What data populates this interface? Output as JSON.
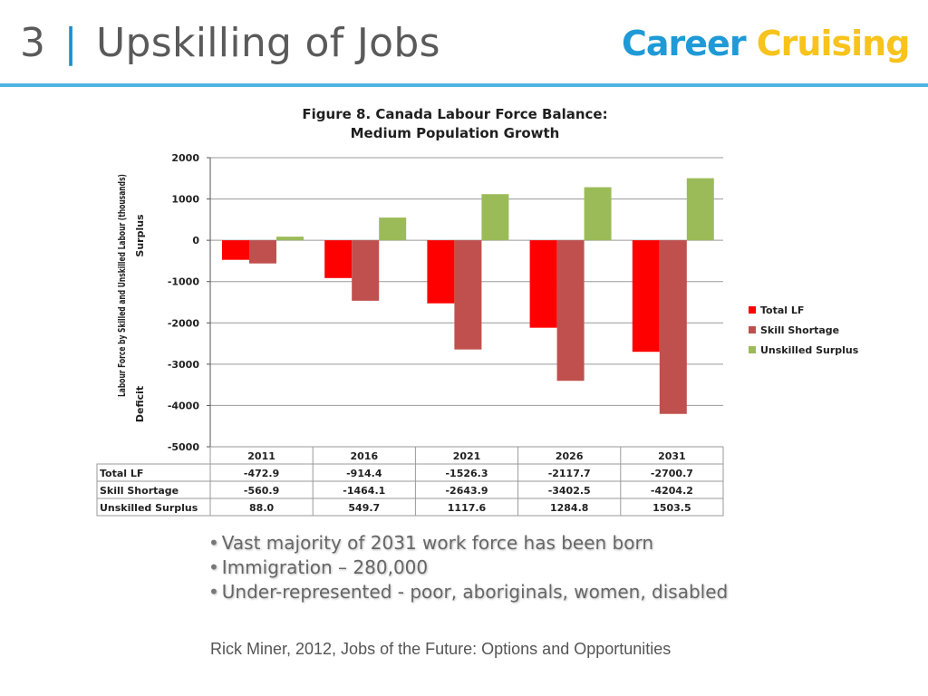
{
  "slide": {
    "number": "3",
    "separator": "|",
    "title": "Upskilling of Jobs",
    "logo": {
      "word1": "Career",
      "word2": "Cruising"
    },
    "bullets": [
      "Vast majority of 2031 work force has been born",
      "Immigration – 280,000",
      "Under-represented - poor, aboriginals, women, disabled"
    ],
    "citation": "Rick Miner, 2012, Jobs of the Future: Options and Opportunities"
  },
  "chart_data": {
    "type": "bar",
    "title": [
      "Figure 8. Canada  Labour Force Balance:",
      "Medium Population Growth"
    ],
    "ylabel": [
      "Labour Force by Skilled and Unskilled Labour (thousands)",
      "Surplus",
      "Deficit"
    ],
    "ylim": [
      -5000,
      2000
    ],
    "yticks": [
      2000,
      1000,
      0,
      -1000,
      -2000,
      -3000,
      -4000,
      -5000
    ],
    "grid": true,
    "legend": "right",
    "categories": [
      "2011",
      "2016",
      "2021",
      "2026",
      "2031"
    ],
    "series": [
      {
        "name": "Total LF",
        "color": "#ff0000",
        "values": [
          -472.9,
          -914.4,
          -1526.3,
          -2117.7,
          -2700.7
        ],
        "labels": [
          "-472.9",
          "-914.4",
          "-1526.3",
          "-2117.7",
          "-2700.7"
        ]
      },
      {
        "name": "Skill Shortage",
        "color": "#c0504d",
        "values": [
          -560.9,
          -1464.1,
          -2643.9,
          -3402.5,
          -4204.2
        ],
        "labels": [
          "-560.9",
          "-1464.1",
          "-2643.9",
          "-3402.5",
          "-4204.2"
        ]
      },
      {
        "name": "Unskilled Surplus",
        "color": "#9bbb59",
        "values": [
          88.0,
          549.7,
          1117.6,
          1284.8,
          1503.5
        ],
        "labels": [
          "88.0",
          "549.7",
          "1117.6",
          "1284.8",
          "1503.5"
        ]
      }
    ]
  }
}
